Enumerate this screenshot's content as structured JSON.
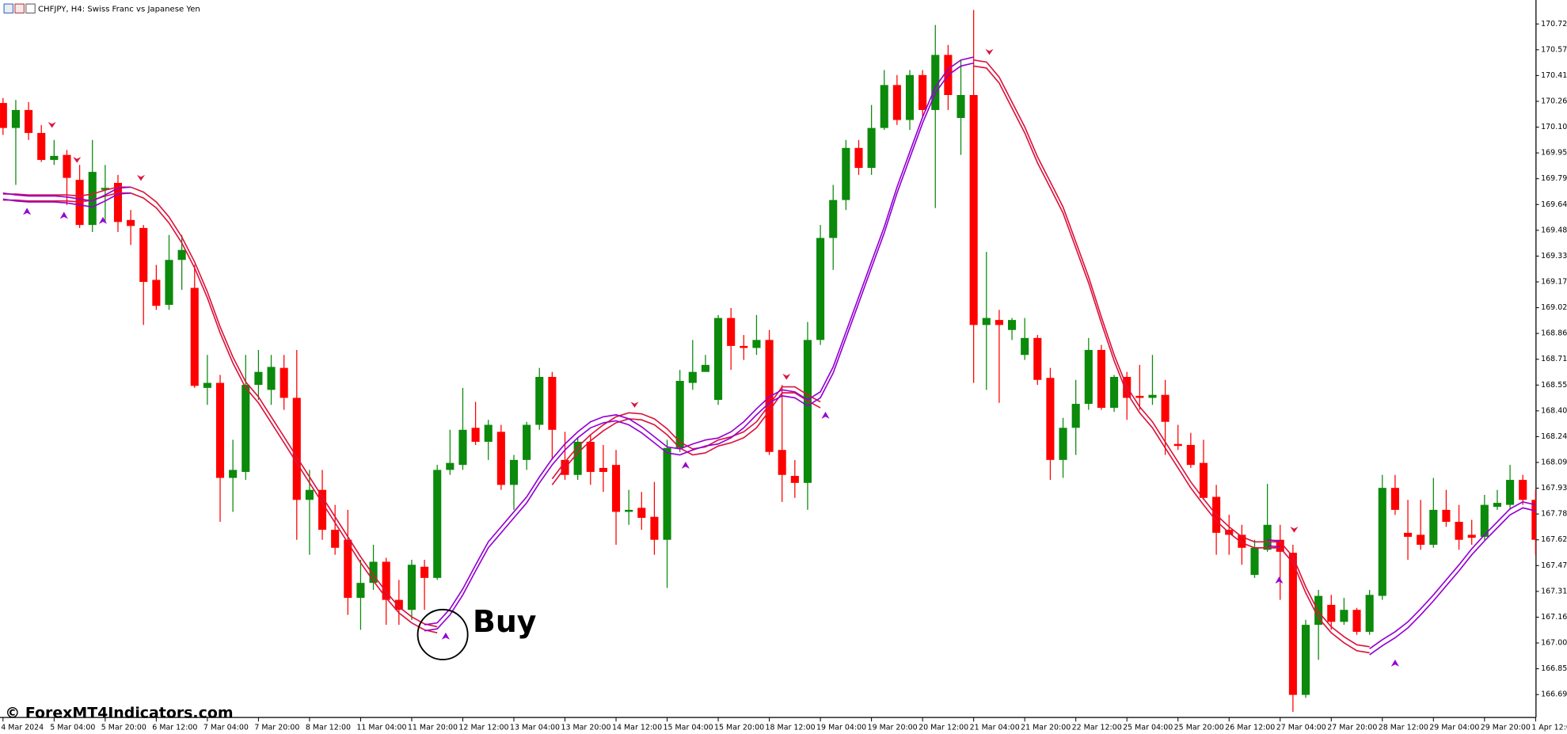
{
  "chart_data": {
    "type": "candlestick",
    "title": "CHFJPY, H4:  Swiss Franc vs Japanese Yen",
    "watermark": "© ForexMT4Indicators.com",
    "annotation": "Buy",
    "up_color": "#0b8a0b",
    "down_color": "#ff0000",
    "ylim": [
      166.557,
      170.869
    ],
    "yticks": [
      170.725,
      {
        "value": 170.57,
        "label": "170.570"
      },
      170.415,
      {
        "value": 170.26,
        "label": "170.260"
      },
      170.105,
      {
        "value": 169.95,
        "label": "169.950"
      },
      169.795,
      {
        "value": 169.64,
        "label": "169.640"
      },
      169.485,
      {
        "value": 169.33,
        "label": "169.330"
      },
      169.175,
      {
        "value": 169.02,
        "label": "169.020"
      },
      168.865,
      {
        "value": 168.71,
        "label": "168.710"
      },
      168.555,
      {
        "value": 168.4,
        "label": "168.400"
      },
      168.245,
      {
        "value": 168.09,
        "label": "168.090"
      },
      167.935,
      {
        "value": 167.78,
        "label": "167.780"
      },
      167.625,
      {
        "value": 167.47,
        "label": "167.470"
      },
      167.315,
      {
        "value": 167.16,
        "label": "167.160"
      },
      167.005,
      {
        "value": 166.85,
        "label": "166.850"
      },
      166.695
    ],
    "categories": [
      "4 Mar 2024",
      null,
      null,
      null,
      "5 Mar 04:00",
      null,
      null,
      null,
      "5 Mar 20:00",
      null,
      null,
      null,
      "6 Mar 12:00",
      null,
      null,
      null,
      "7 Mar 04:00",
      null,
      null,
      null,
      "7 Mar 20:00",
      null,
      null,
      null,
      "8 Mar 12:00",
      null,
      null,
      null,
      "11 Mar 04:00",
      null,
      null,
      null,
      "11 Mar 20:00",
      null,
      null,
      null,
      "12 Mar 12:00",
      null,
      null,
      null,
      "13 Mar 04:00",
      null,
      null,
      null,
      "13 Mar 20:00",
      null,
      null,
      null,
      "14 Mar 12:00",
      null,
      null,
      null,
      "15 Mar 04:00",
      null,
      null,
      null,
      "15 Mar 20:00",
      null,
      null,
      null,
      "18 Mar 12:00",
      null,
      null,
      null,
      "19 Mar 04:00",
      null,
      null,
      null,
      "19 Mar 20:00",
      null,
      null,
      null,
      "20 Mar 12:00",
      null,
      null,
      null,
      "21 Mar 04:00",
      null,
      null,
      null,
      "21 Mar 20:00",
      null,
      null,
      null,
      "22 Mar 12:00",
      null,
      null,
      null,
      "25 Mar 04:00",
      null,
      null,
      null,
      "25 Mar 20:00",
      null,
      null,
      null,
      "26 Mar 12:00",
      null,
      null,
      null,
      "27 Mar 04:00",
      null,
      null,
      null,
      "27 Mar 20:00",
      null,
      null,
      null,
      "28 Mar 12:00",
      null,
      null,
      null,
      "29 Mar 04:00",
      null,
      null,
      null,
      "29 Mar 20:00",
      null,
      null,
      null,
      "1 Apr 12:00"
    ],
    "open": [
      170.25,
      170.1,
      170.208,
      170.07,
      169.908,
      169.938,
      169.788,
      169.517,
      169.728,
      169.77,
      169.547,
      169.499,
      169.187,
      169.037,
      169.307,
      169.139,
      168.538,
      168.568,
      167.997,
      168.033,
      168.556,
      168.526,
      168.658,
      168.478,
      167.865,
      167.925,
      167.685,
      167.625,
      167.276,
      167.366,
      167.493,
      167.264,
      167.204,
      167.463,
      167.396,
      168.045,
      168.075,
      168.298,
      168.214,
      168.274,
      167.955,
      168.105,
      168.316,
      168.604,
      168.105,
      168.015,
      168.214,
      168.057,
      168.075,
      167.793,
      167.817,
      167.763,
      167.625,
      168.177,
      168.568,
      168.634,
      168.466,
      168.958,
      168.79,
      168.778,
      168.826,
      168.165,
      168.009,
      167.967,
      168.826,
      169.439,
      169.667,
      169.98,
      169.86,
      170.1,
      170.358,
      170.148,
      170.418,
      170.208,
      170.539,
      170.16,
      170.298,
      168.916,
      168.946,
      168.886,
      168.736,
      168.838,
      168.598,
      168.105,
      168.298,
      168.442,
      168.766,
      168.418,
      168.604,
      168.49,
      168.478,
      168.496,
      168.201,
      168.195,
      168.087,
      167.883,
      167.685,
      167.655,
      167.414,
      167.565,
      167.625,
      167.547,
      166.693,
      167.114,
      167.234,
      167.132,
      167.204,
      167.072,
      167.288,
      167.937,
      167.667,
      167.655,
      167.595,
      167.805,
      167.733,
      167.655,
      167.643,
      167.823,
      167.835,
      167.985,
      167.865
    ],
    "high": [
      170.28,
      170.268,
      170.256,
      170.118,
      170.028,
      169.968,
      169.878,
      170.028,
      169.878,
      169.818,
      169.607,
      169.517,
      169.277,
      169.457,
      169.457,
      169.277,
      168.736,
      168.616,
      168.226,
      168.736,
      168.766,
      168.736,
      168.736,
      168.766,
      168.045,
      168.045,
      167.835,
      167.805,
      167.505,
      167.595,
      167.517,
      167.384,
      167.505,
      167.505,
      168.075,
      168.286,
      168.538,
      168.454,
      168.346,
      168.316,
      168.135,
      168.334,
      168.658,
      168.634,
      168.274,
      168.238,
      168.256,
      168.195,
      168.165,
      167.925,
      167.913,
      167.973,
      168.226,
      168.646,
      168.826,
      168.736,
      168.976,
      169.018,
      168.856,
      168.976,
      168.886,
      168.556,
      168.105,
      168.934,
      169.517,
      169.758,
      170.028,
      170.028,
      170.238,
      170.448,
      170.418,
      170.448,
      170.448,
      170.719,
      170.599,
      170.509,
      170.809,
      169.355,
      169.007,
      168.958,
      168.958,
      168.856,
      168.658,
      168.358,
      168.586,
      168.838,
      168.796,
      168.616,
      168.634,
      168.676,
      168.736,
      168.586,
      168.316,
      168.268,
      168.226,
      167.955,
      167.775,
      167.715,
      167.625,
      167.961,
      167.715,
      167.595,
      167.144,
      167.324,
      167.294,
      167.276,
      167.216,
      167.324,
      168.015,
      168.015,
      167.865,
      167.865,
      167.997,
      167.925,
      167.835,
      167.745,
      167.895,
      167.925,
      168.075,
      168.015,
      167.925
    ],
    "low": [
      170.058,
      169.758,
      170.028,
      169.896,
      169.878,
      169.637,
      169.499,
      169.475,
      169.535,
      169.475,
      169.397,
      168.916,
      169.007,
      169.007,
      169.127,
      168.538,
      168.436,
      167.733,
      167.793,
      167.985,
      168.466,
      168.436,
      168.406,
      167.625,
      167.535,
      167.625,
      167.535,
      167.174,
      167.084,
      167.324,
      167.114,
      167.114,
      167.144,
      167.204,
      167.384,
      168.015,
      168.045,
      168.195,
      168.105,
      167.925,
      167.805,
      168.045,
      168.286,
      168.105,
      167.985,
      167.985,
      167.955,
      167.913,
      167.595,
      167.715,
      167.685,
      167.535,
      167.336,
      168.153,
      168.526,
      168.634,
      168.436,
      168.646,
      168.706,
      168.736,
      168.135,
      167.853,
      167.877,
      167.805,
      168.796,
      169.247,
      169.607,
      169.818,
      169.818,
      170.088,
      170.118,
      170.088,
      170.16,
      169.619,
      170.208,
      169.938,
      168.568,
      168.526,
      168.448,
      168.826,
      168.706,
      168.556,
      167.985,
      167.997,
      168.135,
      168.406,
      168.406,
      168.394,
      168.346,
      168.406,
      168.436,
      168.135,
      168.165,
      168.057,
      167.865,
      167.535,
      167.535,
      167.475,
      167.396,
      167.553,
      167.264,
      166.591,
      166.675,
      166.904,
      167.084,
      167.114,
      167.054,
      167.054,
      167.264,
      167.775,
      167.505,
      167.565,
      167.577,
      167.703,
      167.565,
      167.595,
      167.625,
      167.805,
      167.805,
      167.835,
      167.535
    ],
    "close": [
      170.1,
      170.208,
      170.07,
      169.908,
      169.932,
      169.8,
      169.517,
      169.836,
      169.74,
      169.535,
      169.511,
      169.175,
      169.031,
      169.307,
      169.367,
      168.55,
      168.568,
      167.997,
      168.045,
      168.556,
      168.634,
      168.664,
      168.478,
      167.865,
      167.925,
      167.685,
      167.577,
      167.276,
      167.366,
      167.493,
      167.264,
      167.204,
      167.475,
      167.396,
      168.045,
      168.087,
      168.286,
      168.214,
      168.316,
      167.955,
      168.105,
      168.316,
      168.604,
      168.286,
      168.015,
      168.214,
      168.033,
      168.033,
      167.793,
      167.805,
      167.757,
      167.625,
      168.177,
      168.58,
      168.634,
      168.676,
      168.958,
      168.79,
      168.778,
      168.826,
      168.153,
      168.015,
      167.967,
      168.826,
      169.439,
      169.667,
      169.98,
      169.86,
      170.1,
      170.358,
      170.148,
      170.418,
      170.208,
      170.539,
      170.298,
      170.298,
      168.916,
      168.958,
      168.916,
      168.946,
      168.838,
      168.586,
      168.105,
      168.298,
      168.442,
      168.766,
      168.418,
      168.604,
      168.478,
      168.478,
      168.496,
      168.334,
      168.189,
      168.075,
      167.877,
      167.667,
      167.655,
      167.577,
      167.577,
      167.715,
      167.553,
      166.693,
      167.114,
      167.288,
      167.132,
      167.204,
      167.072,
      167.294,
      167.937,
      167.805,
      167.643,
      167.595,
      167.805,
      167.733,
      167.625,
      167.637,
      167.835,
      167.847,
      167.985,
      167.865,
      167.625
    ],
    "series": [
      {
        "color": "#dc143c",
        "values": [
          169.685,
          169.685,
          169.679,
          169.679,
          169.679,
          169.679,
          169.673,
          169.685,
          169.709,
          169.727,
          169.727,
          169.697,
          169.637,
          169.547,
          169.427,
          169.277,
          169.097,
          168.886,
          168.706,
          168.556,
          168.466,
          168.346,
          168.226,
          168.105,
          167.985,
          167.865,
          167.745,
          167.625,
          167.505,
          167.396,
          167.294,
          167.204,
          167.144,
          167.102,
          167.084,
          null,
          null,
          null,
          null,
          null,
          null,
          null,
          null,
          167.973,
          168.075,
          168.165,
          168.238,
          168.298,
          168.346,
          168.37,
          168.364,
          168.334,
          168.274,
          168.195,
          168.153,
          168.165,
          168.207,
          168.226,
          168.256,
          168.316,
          168.418,
          168.526,
          168.526,
          168.478,
          168.436,
          null,
          null,
          null,
          null,
          null,
          null,
          null,
          null,
          null,
          null,
          null,
          170.49,
          170.478,
          170.388,
          170.238,
          170.088,
          169.908,
          169.758,
          169.607,
          169.397,
          169.187,
          168.946,
          168.718,
          168.526,
          168.406,
          168.316,
          168.195,
          168.075,
          167.955,
          167.853,
          167.757,
          167.685,
          167.625,
          167.595,
          167.595,
          167.595,
          167.505,
          167.324,
          167.174,
          167.084,
          167.024,
          166.976,
          166.964,
          null,
          null,
          null,
          null,
          null,
          null,
          null,
          null,
          null,
          null,
          null,
          null,
          null
        ]
      },
      {
        "color": "#9400d3",
        "values": [
          169.691,
          169.679,
          169.673,
          169.673,
          169.673,
          169.667,
          169.655,
          169.643,
          169.679,
          169.721,
          169.727,
          null,
          null,
          null,
          null,
          null,
          null,
          null,
          null,
          null,
          null,
          null,
          null,
          null,
          null,
          null,
          null,
          null,
          null,
          null,
          null,
          null,
          null,
          167.096,
          167.108,
          167.192,
          167.312,
          167.456,
          167.595,
          167.685,
          167.775,
          167.865,
          167.985,
          168.093,
          168.183,
          168.256,
          168.316,
          168.346,
          168.358,
          168.334,
          168.286,
          168.226,
          168.165,
          168.153,
          168.183,
          168.207,
          168.219,
          168.256,
          168.316,
          168.394,
          168.466,
          168.508,
          168.496,
          168.448,
          168.496,
          168.646,
          168.856,
          169.067,
          169.277,
          169.487,
          169.727,
          169.938,
          170.148,
          170.328,
          170.436,
          170.49,
          170.508,
          null,
          null,
          null,
          null,
          null,
          null,
          null,
          null,
          null,
          null,
          null,
          null,
          null,
          null,
          null,
          null,
          null,
          null,
          null,
          null,
          null,
          null,
          167.607,
          167.601,
          null,
          null,
          null,
          null,
          null,
          null,
          166.952,
          167.006,
          167.054,
          167.114,
          167.192,
          167.276,
          167.366,
          167.456,
          167.553,
          167.637,
          167.715,
          167.793,
          167.835,
          167.817
        ]
      }
    ]
  }
}
